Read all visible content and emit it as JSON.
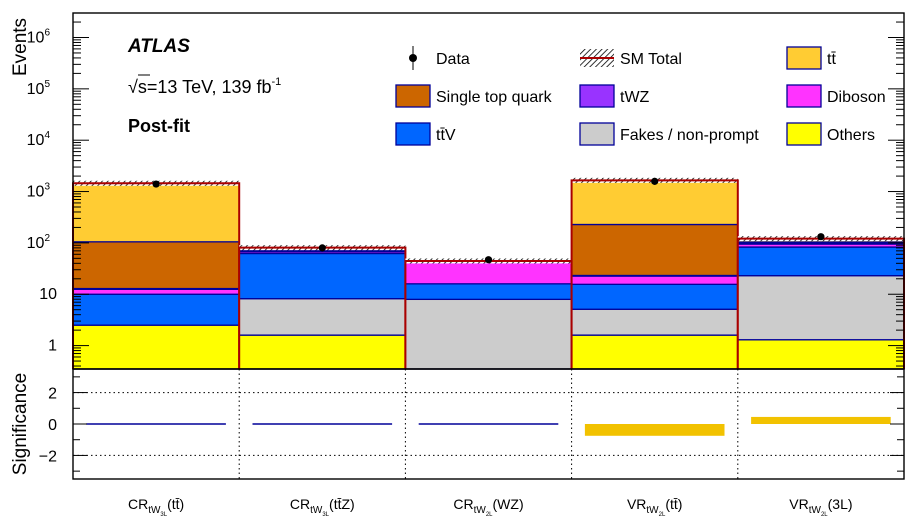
{
  "chart_data": {
    "type": "bar",
    "stacked": true,
    "log_y": true,
    "experiment_label": "ATLAS",
    "energy_label": {
      "sqrt": "√",
      "text": "s=13 TeV, 139 fb",
      "sup": "-1"
    },
    "fit_label": "Post-fit",
    "ylabel": "Events",
    "ylim": [
      0.35,
      3000000
    ],
    "yticks": [
      {
        "v": 1,
        "main": "1",
        "sup": ""
      },
      {
        "v": 10,
        "main": "10",
        "sup": ""
      },
      {
        "v": 100,
        "main": "10",
        "sup": "2"
      },
      {
        "v": 1000,
        "main": "10",
        "sup": "3"
      },
      {
        "v": 10000,
        "main": "10",
        "sup": "4"
      },
      {
        "v": 100000,
        "main": "10",
        "sup": "5"
      },
      {
        "v": 1000000,
        "main": "10",
        "sup": "6"
      }
    ],
    "categories": [
      {
        "main": "CR",
        "sub": "tW",
        "subsub": "3L",
        "suffix": "(tt̄)"
      },
      {
        "main": "CR",
        "sub": "tW",
        "subsub": "3L",
        "suffix": "(tt̄Z)"
      },
      {
        "main": "CR",
        "sub": "tW",
        "subsub": "2L",
        "suffix": "(WZ)"
      },
      {
        "main": "VR",
        "sub": "tW",
        "subsub": "2L",
        "suffix": "(tt̄)"
      },
      {
        "main": "VR",
        "sub": "tW",
        "subsub": "2L",
        "suffix": "(3L)"
      }
    ],
    "series": [
      {
        "name": "Others",
        "color": "#ffff00",
        "values": [
          2.5,
          1.6,
          0.35,
          1.6,
          1.3
        ]
      },
      {
        "name": "Fakes / non-prompt",
        "color": "#cccccc",
        "values": [
          0,
          6.6,
          7.6,
          3.5,
          21.7
        ]
      },
      {
        "name": "tt̄V",
        "color": "#0066ff",
        "values": [
          7.5,
          54,
          8,
          10.5,
          60
        ]
      },
      {
        "name": "Diboson",
        "color": "#ff33ff",
        "values": [
          2.5,
          5,
          25,
          7,
          12
        ]
      },
      {
        "name": "tWZ",
        "color": "#9933ff",
        "values": [
          0.4,
          1.5,
          0.5,
          0.6,
          4
        ]
      },
      {
        "name": "Single top quark",
        "color": "#cc6600",
        "values": [
          92,
          3,
          1,
          205,
          5
        ]
      },
      {
        "name": "tt̄",
        "color": "#ffcc33",
        "values": [
          1345,
          9,
          2,
          1425,
          17
        ]
      }
    ],
    "data_points": [
      1400,
      80,
      47,
      1580,
      132
    ],
    "legend": [
      {
        "label": "Data",
        "kind": "data"
      },
      {
        "label": "SM Total",
        "kind": "total"
      },
      {
        "label": "tt̄",
        "kind": "fill",
        "color": "#ffcc33"
      },
      {
        "label": "Single top quark",
        "kind": "fill",
        "color": "#cc6600"
      },
      {
        "label": "tWZ",
        "kind": "fill",
        "color": "#9933ff"
      },
      {
        "label": "Diboson",
        "kind": "fill",
        "color": "#ff33ff"
      },
      {
        "label": "tt̄V",
        "kind": "fill",
        "color": "#0066ff"
      },
      {
        "label": "Fakes / non-prompt",
        "kind": "fill",
        "color": "#cccccc"
      },
      {
        "label": "Others",
        "kind": "fill",
        "color": "#ffff00"
      }
    ],
    "significance": {
      "ylabel": "Significance",
      "ylim": [
        -3.5,
        3.5
      ],
      "yticks": [
        -2,
        0,
        2
      ],
      "ytick_labels": [
        "−2",
        "0",
        "2"
      ],
      "dotted_lines": [
        2,
        -2
      ],
      "values": [
        0.0,
        0.0,
        0.0,
        -0.75,
        0.45
      ],
      "bar_color": "#f2c200"
    },
    "total_color": "#aa0000"
  }
}
